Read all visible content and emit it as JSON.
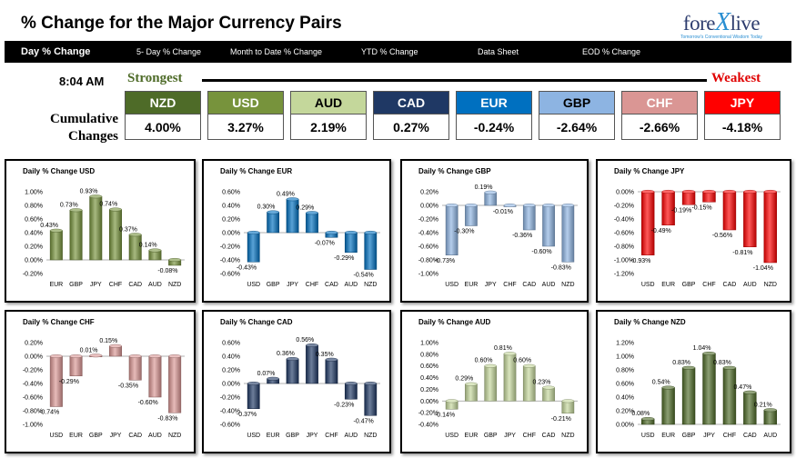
{
  "header": {
    "title": "% Change for the Major Currency Pairs",
    "logo_text_a": "fore",
    "logo_text_x": "X",
    "logo_text_b": "live",
    "logo_tagline": "Tomorrow's Conventional Wisdom Today"
  },
  "nav": [
    {
      "label": "Day % Change",
      "active": true
    },
    {
      "label": "5- Day % Change"
    },
    {
      "label": "Month to Date % Change"
    },
    {
      "label": "YTD % Change"
    },
    {
      "label": "Data Sheet"
    },
    {
      "label": "EOD % Change"
    }
  ],
  "summary": {
    "time": "8:04 AM",
    "strongest_label": "Strongest",
    "weakest_label": "Weakest",
    "cumulative_label_1": "Cumulative",
    "cumulative_label_2": "Changes",
    "tiles": [
      {
        "code": "NZD",
        "value": "4.00%",
        "color": "#4e6b28",
        "text": "#ffffff"
      },
      {
        "code": "USD",
        "value": "3.27%",
        "color": "#77933c",
        "text": "#ffffff"
      },
      {
        "code": "AUD",
        "value": "2.19%",
        "color": "#c4d79b",
        "text": "#000000"
      },
      {
        "code": "CAD",
        "value": "0.27%",
        "color": "#1f3864",
        "text": "#ffffff"
      },
      {
        "code": "EUR",
        "value": "-0.24%",
        "color": "#0070c0",
        "text": "#ffffff"
      },
      {
        "code": "GBP",
        "value": "-2.64%",
        "color": "#8db4e2",
        "text": "#000000"
      },
      {
        "code": "CHF",
        "value": "-2.66%",
        "color": "#da9694",
        "text": "#ffffff"
      },
      {
        "code": "JPY",
        "value": "-4.18%",
        "color": "#ff0000",
        "text": "#ffffff"
      }
    ]
  },
  "chart_data": [
    {
      "type": "bar",
      "title": "Daily % Change USD",
      "categories": [
        "EUR",
        "GBP",
        "JPY",
        "CHF",
        "CAD",
        "AUD",
        "NZD"
      ],
      "values": [
        0.43,
        0.73,
        0.93,
        0.74,
        0.37,
        0.14,
        -0.08
      ],
      "labels": [
        "0.43%",
        "0.73%",
        "0.93%",
        "0.74%",
        "0.37%",
        "0.14%",
        "-0.08%"
      ],
      "ylim": [
        -0.2,
        1.0
      ],
      "ticks": [
        "1.00%",
        "0.80%",
        "0.60%",
        "0.40%",
        "0.20%",
        "0.00%",
        "-0.20%"
      ],
      "color": "#77933c"
    },
    {
      "type": "bar",
      "title": "Daily % Change EUR",
      "categories": [
        "USD",
        "GBP",
        "JPY",
        "CHF",
        "CAD",
        "AUD",
        "NZD"
      ],
      "values": [
        -0.43,
        0.3,
        0.49,
        0.29,
        -0.07,
        -0.29,
        -0.54
      ],
      "labels": [
        "-0.43%",
        "0.30%",
        "0.49%",
        "0.29%",
        "-0.07%",
        "-0.29%",
        "-0.54%"
      ],
      "ylim": [
        -0.6,
        0.6
      ],
      "ticks": [
        "0.60%",
        "0.40%",
        "0.20%",
        "0.00%",
        "-0.20%",
        "-0.40%",
        "-0.60%"
      ],
      "color": "#0070c0"
    },
    {
      "type": "bar",
      "title": "Daily % Change GBP",
      "categories": [
        "USD",
        "EUR",
        "JPY",
        "CHF",
        "CAD",
        "AUD",
        "NZD"
      ],
      "values": [
        -0.73,
        -0.3,
        0.19,
        -0.01,
        -0.36,
        -0.6,
        -0.83
      ],
      "labels": [
        "-0.73%",
        "-0.30%",
        "0.19%",
        "-0.01%",
        "-0.36%",
        "-0.60%",
        "-0.83%"
      ],
      "ylim": [
        -1.0,
        0.2
      ],
      "ticks": [
        "0.20%",
        "0.00%",
        "-0.20%",
        "-0.40%",
        "-0.60%",
        "-0.80%",
        "-1.00%"
      ],
      "color": "#8db4e2"
    },
    {
      "type": "bar",
      "title": "Daily % Change JPY",
      "categories": [
        "USD",
        "EUR",
        "GBP",
        "CHF",
        "CAD",
        "AUD",
        "NZD"
      ],
      "values": [
        -0.93,
        -0.49,
        -0.19,
        -0.15,
        -0.56,
        -0.81,
        -1.04
      ],
      "labels": [
        "-0.93%",
        "-0.49%",
        "-0.19%",
        "-0.15%",
        "-0.56%",
        "-0.81%",
        "-1.04%"
      ],
      "ylim": [
        -1.2,
        0.0
      ],
      "ticks": [
        "0.00%",
        "-0.20%",
        "-0.40%",
        "-0.60%",
        "-0.80%",
        "-1.00%",
        "-1.20%"
      ],
      "color": "#ff0000"
    },
    {
      "type": "bar",
      "title": "Daily % Change CHF",
      "categories": [
        "USD",
        "EUR",
        "GBP",
        "JPY",
        "CAD",
        "AUD",
        "NZD"
      ],
      "values": [
        -0.74,
        -0.29,
        0.01,
        0.15,
        -0.35,
        -0.6,
        -0.83
      ],
      "labels": [
        "-0.74%",
        "-0.29%",
        "0.01%",
        "0.15%",
        "-0.35%",
        "-0.60%",
        "-0.83%"
      ],
      "ylim": [
        -1.0,
        0.2
      ],
      "ticks": [
        "0.20%",
        "0.00%",
        "-0.20%",
        "-0.40%",
        "-0.60%",
        "-0.80%",
        "-1.00%"
      ],
      "color": "#da9694"
    },
    {
      "type": "bar",
      "title": "Daily % Change CAD",
      "categories": [
        "USD",
        "EUR",
        "GBP",
        "JPY",
        "CHF",
        "AUD",
        "NZD"
      ],
      "values": [
        -0.37,
        0.07,
        0.36,
        0.56,
        0.35,
        -0.23,
        -0.47
      ],
      "labels": [
        "-0.37%",
        "0.07%",
        "0.36%",
        "0.56%",
        "0.35%",
        "-0.23%",
        "-0.47%"
      ],
      "ylim": [
        -0.6,
        0.6
      ],
      "ticks": [
        "0.60%",
        "0.40%",
        "0.20%",
        "0.00%",
        "-0.20%",
        "-0.40%",
        "-0.60%"
      ],
      "color": "#1f3864"
    },
    {
      "type": "bar",
      "title": "Daily % Change AUD",
      "categories": [
        "USD",
        "EUR",
        "GBP",
        "JPY",
        "CHF",
        "CAD",
        "NZD"
      ],
      "values": [
        -0.14,
        0.29,
        0.6,
        0.81,
        0.6,
        0.23,
        -0.21
      ],
      "labels": [
        "-0.14%",
        "0.29%",
        "0.60%",
        "0.81%",
        "0.60%",
        "0.23%",
        "-0.21%"
      ],
      "ylim": [
        -0.4,
        1.0
      ],
      "ticks": [
        "1.00%",
        "0.80%",
        "0.60%",
        "0.40%",
        "0.20%",
        "0.00%",
        "-0.20%",
        "-0.40%"
      ],
      "color": "#c4d79b"
    },
    {
      "type": "bar",
      "title": "Daily % Change NZD",
      "categories": [
        "USD",
        "EUR",
        "GBP",
        "JPY",
        "CHF",
        "CAD",
        "AUD"
      ],
      "values": [
        0.08,
        0.54,
        0.83,
        1.04,
        0.83,
        0.47,
        0.21
      ],
      "labels": [
        "0.08%",
        "0.54%",
        "0.83%",
        "1.04%",
        "0.83%",
        "0.47%",
        "0.21%"
      ],
      "ylim": [
        0.0,
        1.2
      ],
      "ticks": [
        "1.20%",
        "1.00%",
        "0.80%",
        "0.60%",
        "0.40%",
        "0.20%",
        "0.00%"
      ],
      "color": "#4e6b28"
    }
  ]
}
